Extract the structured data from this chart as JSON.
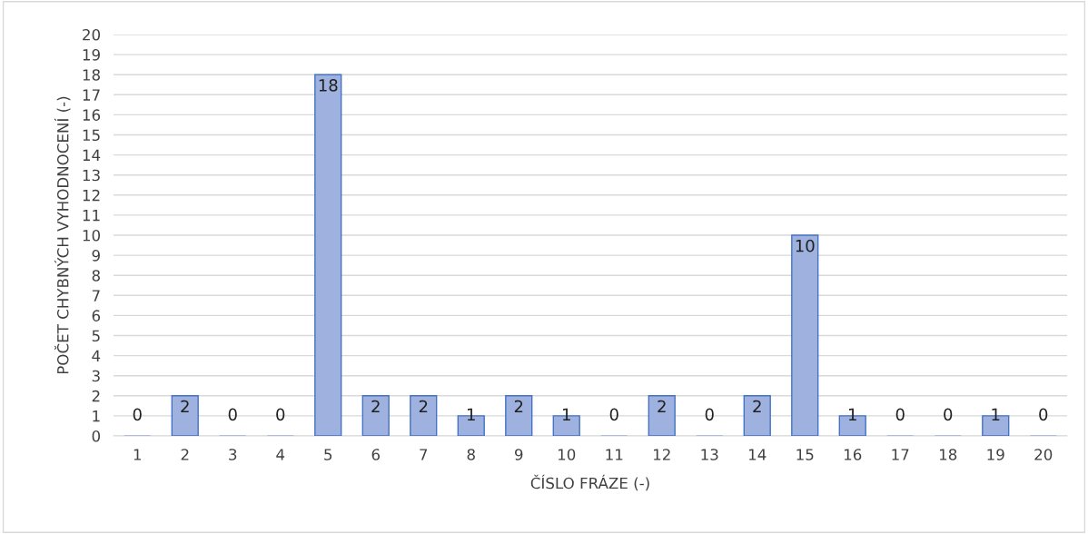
{
  "chart_data": {
    "type": "bar",
    "xlabel": "ČÍSLO FRÁZE (-)",
    "ylabel": "POČET CHYBNÝCH VYHODNOCENÍ (-)",
    "categories": [
      "1",
      "2",
      "3",
      "4",
      "5",
      "6",
      "7",
      "8",
      "9",
      "10",
      "11",
      "12",
      "13",
      "14",
      "15",
      "16",
      "17",
      "18",
      "19",
      "20"
    ],
    "values": [
      0,
      2,
      0,
      0,
      18,
      2,
      2,
      1,
      2,
      1,
      0,
      2,
      0,
      2,
      10,
      1,
      0,
      0,
      1,
      0
    ],
    "color": "#9fb2df",
    "ylim": [
      0,
      20
    ],
    "yticks": [
      0,
      1,
      2,
      3,
      4,
      5,
      6,
      7,
      8,
      9,
      10,
      11,
      12,
      13,
      14,
      15,
      16,
      17,
      18,
      19,
      20
    ],
    "grid": "y",
    "data_labels": true
  }
}
